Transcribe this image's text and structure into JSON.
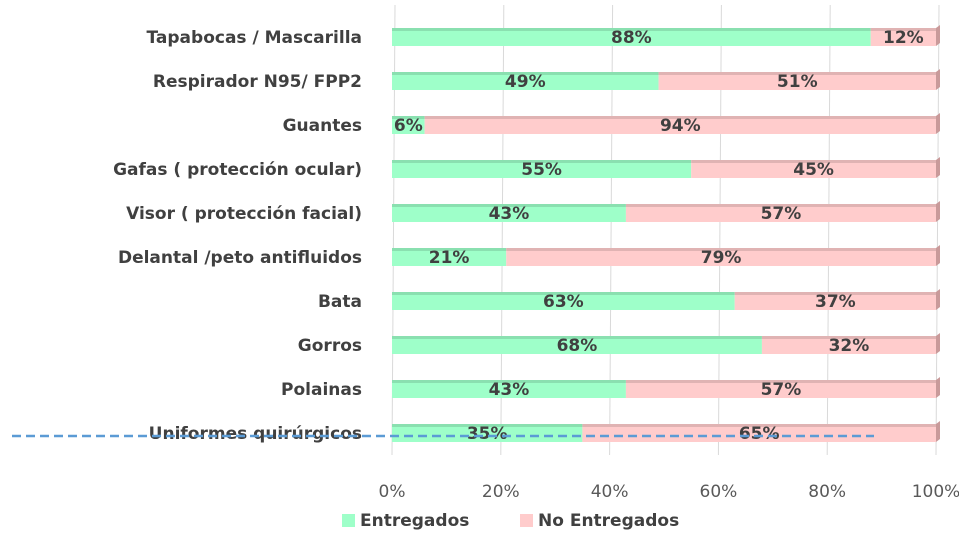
{
  "chart_data": {
    "type": "stacked_bar_h",
    "categories": [
      "Tapabocas / Mascarilla",
      "Respirador N95/ FPP2",
      "Guantes",
      "Gafas ( protección ocular)",
      "Visor ( protección facial)",
      "Delantal /peto antifluidos",
      "Bata",
      "Gorros",
      "Polainas",
      "Uniformes quirúrgicos"
    ],
    "series": [
      {
        "name": "Entregados",
        "color": "#9effc9",
        "values": [
          88,
          49,
          6,
          55,
          43,
          21,
          63,
          68,
          43,
          35
        ],
        "value_labels": [
          "88%",
          "49%",
          "6%",
          "55%",
          "43%",
          "21%",
          "63%",
          "68%",
          "43%",
          "35%"
        ]
      },
      {
        "name": "No Entregados",
        "color": "#ffcccc",
        "values": [
          12,
          51,
          94,
          45,
          57,
          79,
          37,
          32,
          57,
          65
        ],
        "value_labels": [
          "12%",
          "51%",
          "94%",
          "45%",
          "57%",
          "79%",
          "37%",
          "32%",
          "57%",
          "65%"
        ]
      }
    ],
    "xlim": [
      0,
      100
    ],
    "xticks": [
      {
        "value": 0,
        "label": "0%"
      },
      {
        "value": 20,
        "label": "20%"
      },
      {
        "value": 40,
        "label": "40%"
      },
      {
        "value": 60,
        "label": "60%"
      },
      {
        "value": 80,
        "label": "80%"
      },
      {
        "value": 100,
        "label": "100%"
      }
    ],
    "grid": true,
    "legend": "bottom"
  }
}
